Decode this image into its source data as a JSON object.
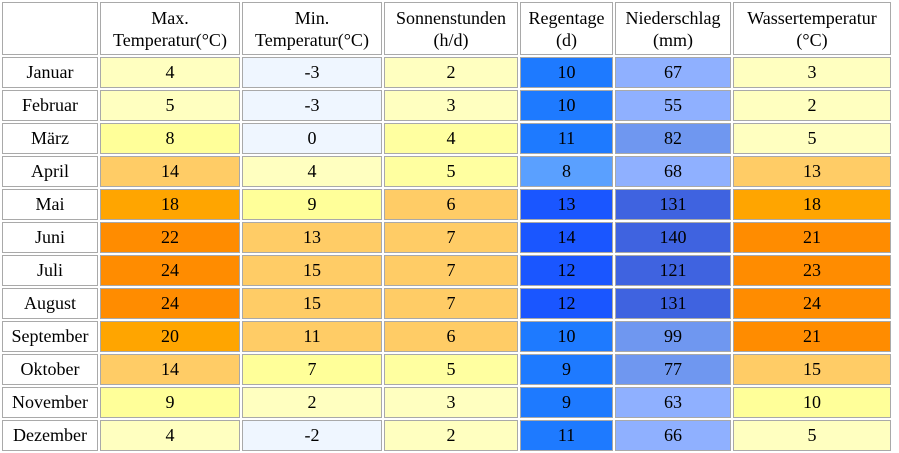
{
  "headers": [
    {
      "line1": "",
      "line2": ""
    },
    {
      "line1": "Max.",
      "line2": "Temperatur(°C)"
    },
    {
      "line1": "Min.",
      "line2": "Temperatur(°C)"
    },
    {
      "line1": "Sonnenstunden",
      "line2": "(h/d)"
    },
    {
      "line1": "Regentage",
      "line2": "(d)"
    },
    {
      "line1": "Niederschlag",
      "line2": "(mm)"
    },
    {
      "line1": "Wassertemperatur",
      "line2": "(°C)"
    }
  ],
  "rows": [
    {
      "month": "Januar",
      "cells": [
        {
          "v": "4",
          "c": "#ffffc0"
        },
        {
          "v": "-3",
          "c": "#eff6ff"
        },
        {
          "v": "2",
          "c": "#ffffc0"
        },
        {
          "v": "10",
          "c": "#1e7aff"
        },
        {
          "v": "67",
          "c": "#8fb0ff"
        },
        {
          "v": "3",
          "c": "#ffffc0"
        }
      ]
    },
    {
      "month": "Februar",
      "cells": [
        {
          "v": "5",
          "c": "#ffffc0"
        },
        {
          "v": "-3",
          "c": "#eff6ff"
        },
        {
          "v": "3",
          "c": "#ffffc0"
        },
        {
          "v": "10",
          "c": "#1e7aff"
        },
        {
          "v": "55",
          "c": "#8fb0ff"
        },
        {
          "v": "2",
          "c": "#ffffc0"
        }
      ]
    },
    {
      "month": "März",
      "cells": [
        {
          "v": "8",
          "c": "#ffff99"
        },
        {
          "v": "0",
          "c": "#eff6ff"
        },
        {
          "v": "4",
          "c": "#ffffa0"
        },
        {
          "v": "11",
          "c": "#1e7aff"
        },
        {
          "v": "82",
          "c": "#6f97f0"
        },
        {
          "v": "5",
          "c": "#ffffc0"
        }
      ]
    },
    {
      "month": "April",
      "cells": [
        {
          "v": "14",
          "c": "#ffcc66"
        },
        {
          "v": "4",
          "c": "#ffffc0"
        },
        {
          "v": "5",
          "c": "#ffffa0"
        },
        {
          "v": "8",
          "c": "#5aa0ff"
        },
        {
          "v": "68",
          "c": "#8fb0ff"
        },
        {
          "v": "13",
          "c": "#ffcc66"
        }
      ]
    },
    {
      "month": "Mai",
      "cells": [
        {
          "v": "18",
          "c": "#ffa500"
        },
        {
          "v": "9",
          "c": "#ffff99"
        },
        {
          "v": "6",
          "c": "#ffcc66"
        },
        {
          "v": "13",
          "c": "#1a56ff"
        },
        {
          "v": "131",
          "c": "#3f63e0"
        },
        {
          "v": "18",
          "c": "#ffa500"
        }
      ]
    },
    {
      "month": "Juni",
      "cells": [
        {
          "v": "22",
          "c": "#ff8c00"
        },
        {
          "v": "13",
          "c": "#ffcc66"
        },
        {
          "v": "7",
          "c": "#ffcc66"
        },
        {
          "v": "14",
          "c": "#1a56ff"
        },
        {
          "v": "140",
          "c": "#3f63e0"
        },
        {
          "v": "21",
          "c": "#ff8c00"
        }
      ]
    },
    {
      "month": "Juli",
      "cells": [
        {
          "v": "24",
          "c": "#ff8c00"
        },
        {
          "v": "15",
          "c": "#ffcc66"
        },
        {
          "v": "7",
          "c": "#ffcc66"
        },
        {
          "v": "12",
          "c": "#1a56ff"
        },
        {
          "v": "121",
          "c": "#3f63e0"
        },
        {
          "v": "23",
          "c": "#ff8c00"
        }
      ]
    },
    {
      "month": "August",
      "cells": [
        {
          "v": "24",
          "c": "#ff8c00"
        },
        {
          "v": "15",
          "c": "#ffcc66"
        },
        {
          "v": "7",
          "c": "#ffcc66"
        },
        {
          "v": "12",
          "c": "#1a56ff"
        },
        {
          "v": "131",
          "c": "#3f63e0"
        },
        {
          "v": "24",
          "c": "#ff8c00"
        }
      ]
    },
    {
      "month": "September",
      "cells": [
        {
          "v": "20",
          "c": "#ffa500"
        },
        {
          "v": "11",
          "c": "#ffcc66"
        },
        {
          "v": "6",
          "c": "#ffcc66"
        },
        {
          "v": "10",
          "c": "#1e7aff"
        },
        {
          "v": "99",
          "c": "#6f97f0"
        },
        {
          "v": "21",
          "c": "#ff8c00"
        }
      ]
    },
    {
      "month": "Oktober",
      "cells": [
        {
          "v": "14",
          "c": "#ffcc66"
        },
        {
          "v": "7",
          "c": "#ffff99"
        },
        {
          "v": "5",
          "c": "#ffffa0"
        },
        {
          "v": "9",
          "c": "#1e7aff"
        },
        {
          "v": "77",
          "c": "#6f97f0"
        },
        {
          "v": "15",
          "c": "#ffcc66"
        }
      ]
    },
    {
      "month": "November",
      "cells": [
        {
          "v": "9",
          "c": "#ffff99"
        },
        {
          "v": "2",
          "c": "#ffffc0"
        },
        {
          "v": "3",
          "c": "#ffffc0"
        },
        {
          "v": "9",
          "c": "#1e7aff"
        },
        {
          "v": "63",
          "c": "#8fb0ff"
        },
        {
          "v": "10",
          "c": "#ffff99"
        }
      ]
    },
    {
      "month": "Dezember",
      "cells": [
        {
          "v": "4",
          "c": "#ffffc0"
        },
        {
          "v": "-2",
          "c": "#eff6ff"
        },
        {
          "v": "2",
          "c": "#ffffc0"
        },
        {
          "v": "11",
          "c": "#1e7aff"
        },
        {
          "v": "66",
          "c": "#8fb0ff"
        },
        {
          "v": "5",
          "c": "#ffffc0"
        }
      ]
    }
  ]
}
